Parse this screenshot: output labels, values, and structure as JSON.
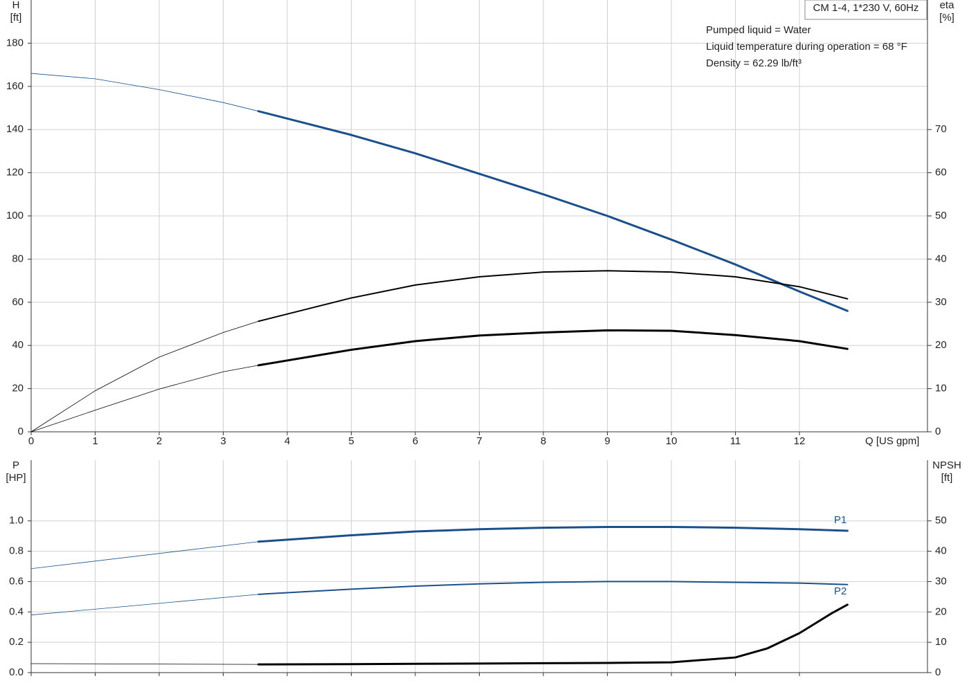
{
  "chart_data": [
    {
      "type": "line",
      "title": "CM 1-4, 1*230 V, 60Hz",
      "annotations": [
        "Pumped liquid = Water",
        "Liquid temperature during operation = 68 °F",
        "Density = 62.29 lb/ft³"
      ],
      "ylabel": [
        "H",
        "[ft]"
      ],
      "y2label": [
        "eta",
        "[%]"
      ],
      "xlabel": "Q [US gpm]",
      "xlim": [
        0,
        14
      ],
      "xticks": [
        0,
        1,
        2,
        3,
        4,
        5,
        6,
        7,
        8,
        9,
        10,
        11,
        12
      ],
      "xtick_labels": true,
      "ylim": [
        0,
        200
      ],
      "yticks": [
        0,
        20,
        40,
        60,
        80,
        100,
        120,
        140,
        160,
        180
      ],
      "y2lim": [
        0,
        100
      ],
      "y2ticks": [
        0,
        10,
        20,
        30,
        40,
        50,
        60,
        70
      ],
      "grid": true,
      "series": [
        {
          "color": "#1a4f8b",
          "width": 0.8,
          "axis": "y",
          "x": [
            0,
            1,
            2,
            3,
            3.55
          ],
          "values": [
            166,
            163.5,
            158.5,
            152.5,
            148.5
          ]
        },
        {
          "color": "#1a4f8b",
          "width": 3,
          "axis": "y",
          "x": [
            3.55,
            5,
            6,
            7,
            8,
            9,
            10,
            11,
            12,
            12.75
          ],
          "values": [
            148.5,
            137.5,
            129,
            119.5,
            110,
            100,
            89,
            77.5,
            65,
            56
          ]
        },
        {
          "color": "#000000",
          "width": 0.8,
          "axis": "y2",
          "x": [
            0,
            1,
            2,
            3,
            3.55
          ],
          "values": [
            0,
            9.5,
            17.3,
            23,
            25.6
          ]
        },
        {
          "color": "#000000",
          "width": 2,
          "axis": "y2",
          "x": [
            3.55,
            5,
            6,
            7,
            8,
            9,
            10,
            11,
            12,
            12.75
          ],
          "values": [
            25.6,
            31,
            34,
            35.9,
            37,
            37.3,
            37,
            35.9,
            33.6,
            30.8
          ]
        },
        {
          "color": "#000000",
          "width": 0.8,
          "axis": "y2",
          "x": [
            0,
            1,
            2,
            3,
            3.55
          ],
          "values": [
            0,
            5,
            9.9,
            13.9,
            15.4
          ]
        },
        {
          "color": "#000000",
          "width": 3,
          "axis": "y2",
          "x": [
            3.55,
            5,
            6,
            7,
            8,
            9,
            10,
            11,
            12,
            12.75
          ],
          "values": [
            15.4,
            19,
            21,
            22.3,
            23,
            23.5,
            23.4,
            22.4,
            21,
            19.2
          ]
        }
      ]
    },
    {
      "type": "line",
      "ylabel": [
        "P",
        "[HP]"
      ],
      "y2label": [
        "NPSH",
        "[ft]"
      ],
      "xlim": [
        0,
        14
      ],
      "xticks": [
        0,
        1,
        2,
        3,
        4,
        5,
        6,
        7,
        8,
        9,
        10,
        11,
        12
      ],
      "xtick_labels": false,
      "ylim": [
        0,
        1.4
      ],
      "yticks": [
        {
          "value": 0,
          "label": "0.0"
        },
        0.2,
        0.4,
        0.6,
        0.8,
        {
          "value": 1,
          "label": "1.0"
        }
      ],
      "y2lim": [
        0,
        70
      ],
      "y2ticks": [
        0,
        10,
        20,
        30,
        40,
        50
      ],
      "grid": true,
      "series": [
        {
          "color": "#1a4f8b",
          "width": 0.8,
          "axis": "y",
          "x": [
            0,
            3.55
          ],
          "values": [
            0.685,
            0.863
          ]
        },
        {
          "name": "P1",
          "color": "#1a4f8b",
          "width": 3,
          "axis": "y",
          "x": [
            3.55,
            5,
            6,
            7,
            8,
            9,
            10,
            11,
            12,
            12.75
          ],
          "values": [
            0.863,
            0.905,
            0.93,
            0.945,
            0.955,
            0.96,
            0.96,
            0.955,
            0.945,
            0.935
          ]
        },
        {
          "color": "#1a4f8b",
          "width": 0.8,
          "axis": "y",
          "x": [
            0,
            3.55
          ],
          "values": [
            0.38,
            0.516
          ]
        },
        {
          "name": "P2",
          "color": "#1a4f8b",
          "width": 2,
          "axis": "y",
          "x": [
            3.55,
            5,
            6,
            7,
            8,
            9,
            10,
            11,
            12,
            12.75
          ],
          "values": [
            0.516,
            0.55,
            0.57,
            0.585,
            0.595,
            0.6,
            0.6,
            0.595,
            0.59,
            0.58
          ]
        },
        {
          "color": "#000000",
          "width": 0.8,
          "axis": "y2",
          "x": [
            0,
            3.55
          ],
          "values": [
            2.97,
            2.7
          ]
        },
        {
          "color": "#000000",
          "width": 3,
          "axis": "y2",
          "x": [
            3.55,
            5,
            6,
            7,
            8,
            9,
            10,
            11,
            11.5,
            12,
            12.5,
            12.75
          ],
          "values": [
            2.7,
            2.8,
            2.9,
            3,
            3.1,
            3.2,
            3.4,
            5,
            8,
            13,
            19.5,
            22.4
          ]
        }
      ]
    }
  ]
}
